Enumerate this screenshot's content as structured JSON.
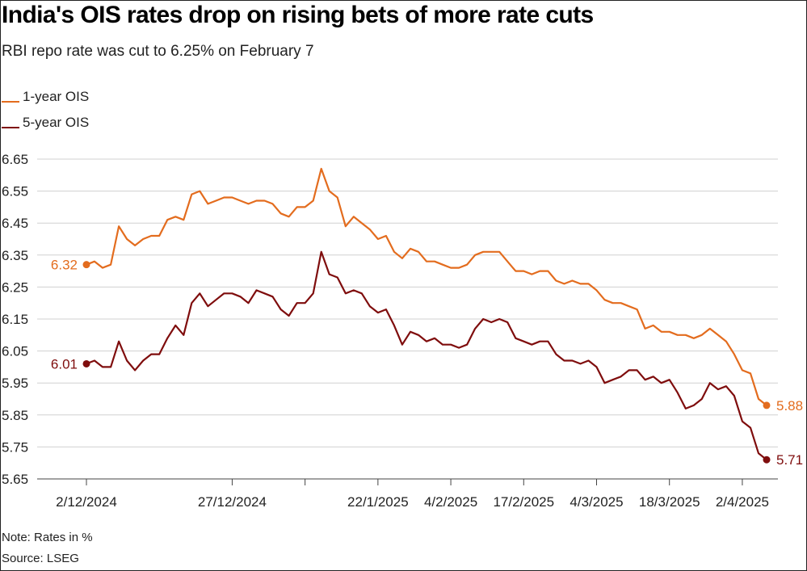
{
  "title": "India's OIS rates drop on rising bets of more rate cuts",
  "subtitle": "RBI repo rate was cut to 6.25% on February 7",
  "note": "Note: Rates in %",
  "source": "Source: LSEG",
  "colors": {
    "one_year": "#e36c1e",
    "five_year": "#7f0d0d",
    "grid": "#d0d0d0"
  },
  "chart_data": {
    "type": "line",
    "ylim": [
      5.65,
      6.65
    ],
    "yticks": [
      "6.65",
      "6.55",
      "6.45",
      "6.35",
      "6.25",
      "6.15",
      "6.05",
      "5.95",
      "5.85",
      "5.75",
      "5.65"
    ],
    "xtick_labels": [
      "2/12/2024",
      "27/12/2024",
      "22/1/2025",
      "4/2/2025",
      "17/2/2025",
      "4/3/2025",
      "18/3/2025",
      "2/4/2025"
    ],
    "xlim_index": [
      0,
      84
    ],
    "xtick_index": [
      0,
      18,
      27,
      36,
      45,
      54,
      63,
      72,
      81
    ],
    "xlabel_index": [
      0,
      18,
      36,
      45,
      54,
      63,
      72,
      81
    ],
    "grid": true,
    "legend_position": "top-left",
    "series": [
      {
        "name": "1-year OIS",
        "color": "#e36c1e",
        "start_label": "6.32",
        "end_label": "5.88",
        "values": [
          6.32,
          6.33,
          6.31,
          6.32,
          6.44,
          6.4,
          6.38,
          6.4,
          6.41,
          6.41,
          6.46,
          6.47,
          6.46,
          6.54,
          6.55,
          6.51,
          6.52,
          6.53,
          6.53,
          6.52,
          6.51,
          6.52,
          6.52,
          6.51,
          6.48,
          6.47,
          6.5,
          6.5,
          6.52,
          6.62,
          6.55,
          6.53,
          6.44,
          6.47,
          6.45,
          6.43,
          6.4,
          6.41,
          6.36,
          6.34,
          6.37,
          6.36,
          6.33,
          6.33,
          6.32,
          6.31,
          6.31,
          6.32,
          6.35,
          6.36,
          6.36,
          6.36,
          6.33,
          6.3,
          6.3,
          6.29,
          6.3,
          6.3,
          6.27,
          6.26,
          6.27,
          6.26,
          6.26,
          6.24,
          6.21,
          6.2,
          6.2,
          6.19,
          6.18,
          6.12,
          6.13,
          6.11,
          6.11,
          6.1,
          6.1,
          6.09,
          6.1,
          6.12,
          6.1,
          6.08,
          6.04,
          5.99,
          5.98,
          5.9,
          5.88
        ]
      },
      {
        "name": "5-year OIS",
        "color": "#7f0d0d",
        "start_label": "6.01",
        "end_label": "5.71",
        "values": [
          6.01,
          6.02,
          6.0,
          6.0,
          6.08,
          6.02,
          5.99,
          6.02,
          6.04,
          6.04,
          6.09,
          6.13,
          6.1,
          6.2,
          6.23,
          6.19,
          6.21,
          6.23,
          6.23,
          6.22,
          6.2,
          6.24,
          6.23,
          6.22,
          6.18,
          6.16,
          6.2,
          6.2,
          6.23,
          6.36,
          6.29,
          6.28,
          6.23,
          6.24,
          6.23,
          6.19,
          6.17,
          6.18,
          6.13,
          6.07,
          6.11,
          6.1,
          6.08,
          6.09,
          6.07,
          6.07,
          6.06,
          6.07,
          6.12,
          6.15,
          6.14,
          6.15,
          6.14,
          6.09,
          6.08,
          6.07,
          6.08,
          6.08,
          6.04,
          6.02,
          6.02,
          6.01,
          6.02,
          6.0,
          5.95,
          5.96,
          5.97,
          5.99,
          5.99,
          5.96,
          5.97,
          5.95,
          5.96,
          5.92,
          5.87,
          5.88,
          5.9,
          5.95,
          5.93,
          5.94,
          5.91,
          5.83,
          5.81,
          5.73,
          5.71
        ]
      }
    ]
  }
}
